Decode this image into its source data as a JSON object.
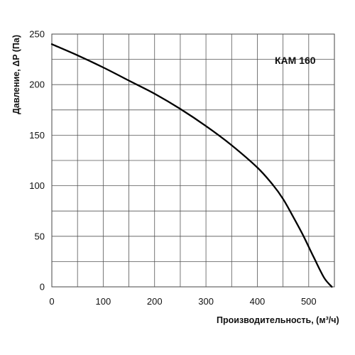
{
  "chart_data": {
    "type": "line",
    "xlabel": "Производительность, (м³/ч)",
    "ylabel": "Давление, ΔP (Па)",
    "xlim": [
      0,
      550
    ],
    "ylim": [
      0,
      250
    ],
    "x_ticks": [
      0,
      100,
      200,
      300,
      400,
      500
    ],
    "y_ticks": [
      0,
      50,
      100,
      150,
      200,
      250
    ],
    "grid": true,
    "legend_position": "top-right",
    "series": [
      {
        "name": "КАМ 160",
        "color": "#000000",
        "x": [
          0,
          50,
          100,
          150,
          200,
          250,
          300,
          350,
          400,
          430,
          450,
          470,
          490,
          510,
          530,
          545
        ],
        "y": [
          240,
          229,
          217,
          204,
          191,
          176,
          159,
          140,
          118,
          101,
          87,
          69,
          50,
          29,
          9,
          0
        ]
      }
    ]
  }
}
